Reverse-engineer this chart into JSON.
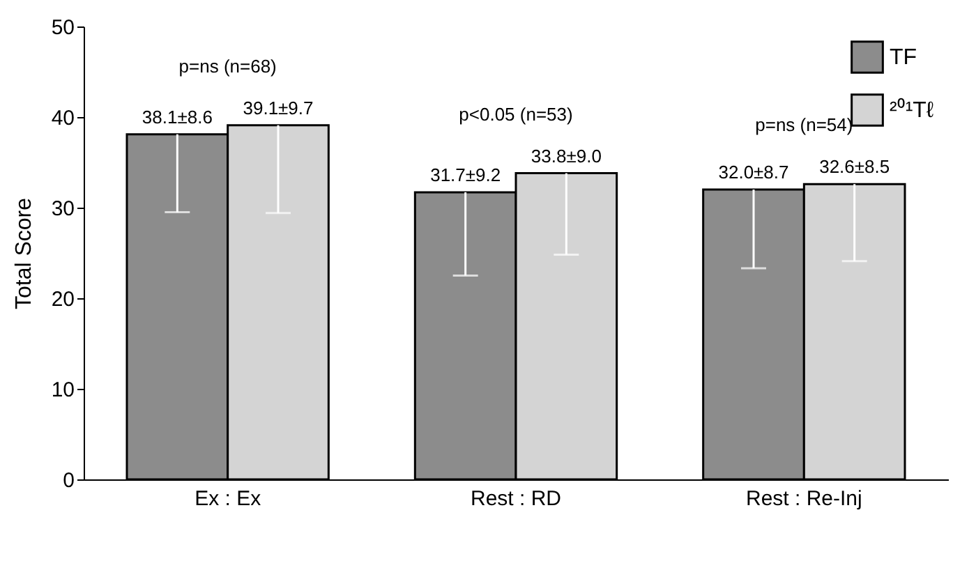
{
  "chart_data": {
    "type": "bar",
    "ylabel": "Total Score",
    "categories": [
      "Ex : Ex",
      "Rest : RD",
      "Rest : Re-Inj"
    ],
    "series": [
      {
        "name": "TF",
        "color": "#8c8c8c",
        "values": [
          38.1,
          31.7,
          32.0
        ],
        "errors": [
          [
            29.5,
            38.1
          ],
          [
            22.5,
            31.7
          ],
          [
            23.3,
            32.0
          ]
        ],
        "value_labels": [
          "38.1±8.6",
          "31.7±9.2",
          "32.0±8.7"
        ]
      },
      {
        "name": "²⁰¹Tℓ",
        "color": "#d4d4d4",
        "values": [
          39.1,
          33.8,
          32.6
        ],
        "errors": [
          [
            29.4,
            39.1
          ],
          [
            24.8,
            33.8
          ],
          [
            24.1,
            32.6
          ]
        ],
        "value_labels": [
          "39.1±9.7",
          "33.8±9.0",
          "32.6±8.5"
        ]
      }
    ],
    "annotations": [
      "p=ns (n=68)",
      "p<0.05 (n=53)",
      "p=ns (n=54)"
    ],
    "ylim": [
      0,
      50
    ],
    "yticks": [
      0,
      10,
      20,
      30,
      40,
      50
    ],
    "grid": false,
    "legend": "top right"
  }
}
